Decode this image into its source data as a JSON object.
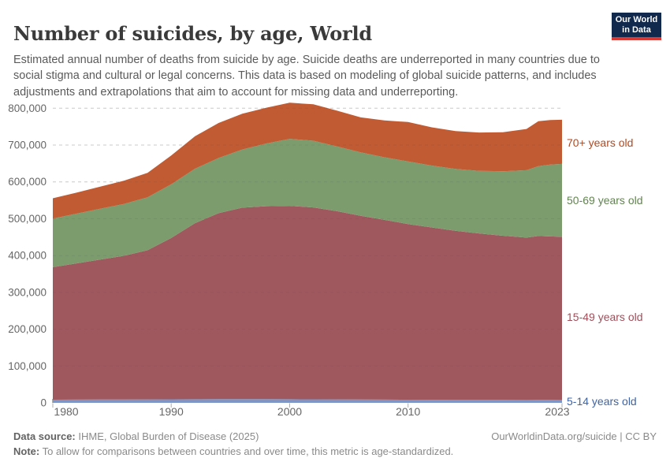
{
  "header": {
    "title": "Number of suicides, by age, World",
    "subtitle": "Estimated annual number of deaths from suicide by age. Suicide deaths are underreported in many countries due to social stigma and cultural or legal concerns. This data is based on modeling of global suicide patterns, and includes adjustments and extrapolations that aim to account for missing data and underreporting.",
    "logo": {
      "line1": "Our World",
      "line2": "in Data",
      "bg_color": "#10294d",
      "bar_color": "#d73a34"
    }
  },
  "chart_data": {
    "type": "area",
    "stacked": true,
    "title": "Number of suicides, by age, World",
    "xlabel": "",
    "ylabel": "",
    "grid": "horizontal-dashed",
    "legend_position": "right-edge-labels",
    "ylim": [
      0,
      800000
    ],
    "x": [
      1980,
      1982,
      1984,
      1986,
      1988,
      1990,
      1992,
      1994,
      1996,
      1998,
      2000,
      2002,
      2004,
      2006,
      2008,
      2010,
      2012,
      2014,
      2016,
      2018,
      2020,
      2021,
      2022,
      2023
    ],
    "x_ticks": [
      {
        "year": 1980,
        "label": "1980"
      },
      {
        "year": 1990,
        "label": "1990"
      },
      {
        "year": 2000,
        "label": "2000"
      },
      {
        "year": 2010,
        "label": "2010"
      },
      {
        "year": 2023,
        "label": "2023"
      }
    ],
    "y_ticks": [
      {
        "value": 0,
        "label": "0"
      },
      {
        "value": 100000,
        "label": "100,000"
      },
      {
        "value": 200000,
        "label": "200,000"
      },
      {
        "value": 300000,
        "label": "300,000"
      },
      {
        "value": 400000,
        "label": "400,000"
      },
      {
        "value": 500000,
        "label": "500,000"
      },
      {
        "value": 600000,
        "label": "600,000"
      },
      {
        "value": 700000,
        "label": "700,000"
      },
      {
        "value": 800000,
        "label": "800,000"
      }
    ],
    "series": [
      {
        "name": "5-14 years old",
        "color": "#7E96C5",
        "label_color": "#3d64a8",
        "values": [
          8500,
          8800,
          9000,
          9200,
          9400,
          9600,
          9800,
          10000,
          10000,
          10000,
          9900,
          9700,
          9400,
          9100,
          8800,
          8500,
          8300,
          8100,
          8000,
          7900,
          7800,
          7900,
          7900,
          7800
        ]
      },
      {
        "name": "15-49 years old",
        "color": "#A0585F",
        "label_color": "#a14e59",
        "values": [
          360000,
          370000,
          380000,
          390000,
          405000,
          438000,
          478000,
          505000,
          520000,
          524000,
          525000,
          521000,
          511000,
          499000,
          488000,
          477000,
          468000,
          459000,
          452000,
          446000,
          441000,
          445000,
          444000,
          443000
        ]
      },
      {
        "name": "50-69 years old",
        "color": "#7C9C6E",
        "label_color": "#61854f",
        "values": [
          132000,
          135000,
          138000,
          141000,
          144000,
          146000,
          148000,
          150000,
          158000,
          170000,
          182000,
          181000,
          176000,
          172000,
          170000,
          170000,
          168000,
          168000,
          170000,
          175000,
          183000,
          190000,
          195000,
          198000
        ]
      },
      {
        "name": "70+ years old",
        "color": "#C05B33",
        "label_color": "#b4491f",
        "values": [
          55000,
          57000,
          60000,
          63000,
          66000,
          78000,
          88000,
          95000,
          97000,
          97000,
          98000,
          99000,
          97000,
          95000,
          100000,
          107000,
          104000,
          103000,
          104000,
          106000,
          112000,
          122000,
          121000,
          120000
        ]
      }
    ]
  },
  "footer": {
    "data_source_label": "Data source:",
    "data_source_value": " IHME, Global Burden of Disease (2025)",
    "note_label": "Note:",
    "note_value": " To allow for comparisons between countries and over time, this metric is age-standardized.",
    "credit": "OurWorldinData.org/suicide | CC BY"
  }
}
